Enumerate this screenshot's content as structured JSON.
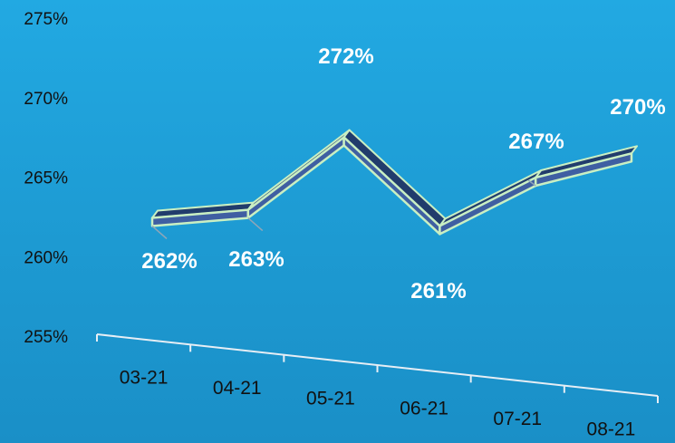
{
  "chart_data": {
    "type": "line",
    "style": "3d-ribbon",
    "categories": [
      "03-21",
      "04-21",
      "05-21",
      "06-21",
      "07-21",
      "08-21"
    ],
    "series": [
      {
        "values": [
          262,
          263,
          272,
          261,
          267,
          270
        ]
      }
    ],
    "data_labels": [
      "262%",
      "263%",
      "272%",
      "261%",
      "267%",
      "270%"
    ],
    "y_ticks": [
      "275%",
      "270%",
      "265%",
      "260%",
      "255%"
    ],
    "ylim": [
      255,
      275
    ],
    "grid": false,
    "legend": "none",
    "colors": {
      "background": "#1f9fd8",
      "ribbon_face": "#3f5fa2",
      "ribbon_top": "#213c6c",
      "ribbon_edge": "#c9efc3",
      "axis": "#e6eef5",
      "label": "#ffffff",
      "tick_text": "#111111"
    }
  }
}
